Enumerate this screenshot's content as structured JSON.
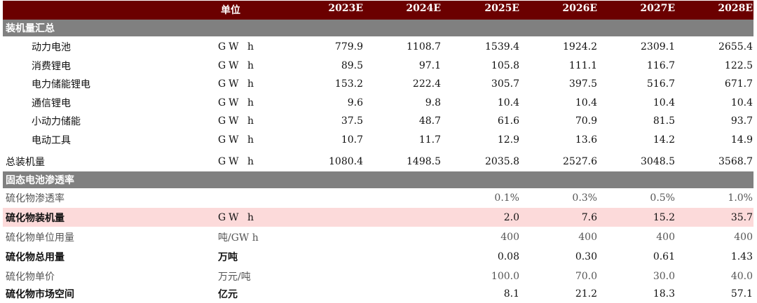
{
  "header": {
    "unit_label": "单位",
    "years": [
      "2023E",
      "2024E",
      "2025E",
      "2026E",
      "2027E",
      "2028E"
    ]
  },
  "sections": [
    {
      "title": "装机量汇总",
      "rows": [
        {
          "label": "动力电池",
          "unit": "GW h",
          "values": [
            "779.9",
            "1108.7",
            "1539.4",
            "1924.2",
            "2309.1",
            "2655.4"
          ]
        },
        {
          "label": "消费锂电",
          "unit": "GW h",
          "values": [
            "89.5",
            "97.1",
            "105.8",
            "111.1",
            "116.7",
            "122.5"
          ]
        },
        {
          "label": "电力储能锂电",
          "unit": "GW h",
          "values": [
            "153.2",
            "222.4",
            "305.7",
            "397.5",
            "516.7",
            "671.7"
          ]
        },
        {
          "label": "通信锂电",
          "unit": "GW h",
          "values": [
            "9.6",
            "9.8",
            "10.4",
            "10.4",
            "10.4",
            "10.4"
          ]
        },
        {
          "label": "小动力储能",
          "unit": "GW h",
          "values": [
            "37.5",
            "48.7",
            "61.6",
            "70.9",
            "81.5",
            "93.7"
          ]
        },
        {
          "label": "电动工具",
          "unit": "GW h",
          "values": [
            "10.7",
            "11.7",
            "12.9",
            "13.6",
            "14.2",
            "14.9"
          ]
        },
        {
          "label": "总装机量",
          "unit": "GW h",
          "values": [
            "1080.4",
            "1498.5",
            "2035.8",
            "2527.6",
            "3048.5",
            "3568.7"
          ]
        }
      ]
    },
    {
      "title": "固态电池渗透率",
      "rows": [
        {
          "label": "硫化物渗透率",
          "unit": "",
          "values": [
            "",
            "",
            "0.1%",
            "0.3%",
            "0.5%",
            "1.0%"
          ]
        },
        {
          "label": "硫化物装机量",
          "unit": "GW h",
          "values": [
            "",
            "",
            "2.0",
            "7.6",
            "15.2",
            "35.7"
          ]
        },
        {
          "label": "硫化物单位用量",
          "unit": "吨/GW h",
          "values": [
            "",
            "",
            "400",
            "400",
            "400",
            "400"
          ]
        },
        {
          "label": "硫化物总用量",
          "unit": "万吨",
          "values": [
            "",
            "",
            "0.08",
            "0.30",
            "0.61",
            "1.43"
          ]
        },
        {
          "label": "硫化物单价",
          "unit": "万元/吨",
          "values": [
            "",
            "",
            "100.0",
            "70.0",
            "30.0",
            "40.0"
          ]
        },
        {
          "label": "硫化物市场空间",
          "unit": "亿元",
          "values": [
            "",
            "",
            "8.1",
            "21.2",
            "18.3",
            "57.1"
          ]
        }
      ]
    }
  ],
  "colors": {
    "header_bg": "#6b0000",
    "section_bg": "#808080",
    "highlight_bg": "#fcdada"
  }
}
